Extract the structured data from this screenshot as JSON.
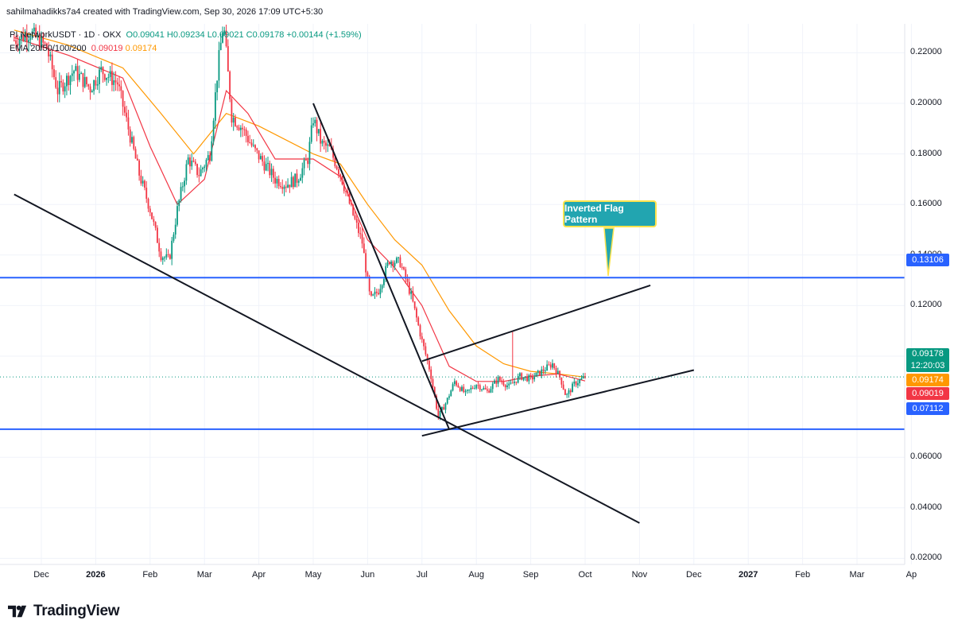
{
  "header": {
    "created_by": "sahilmahadikks7a4 created with TradingView.com, Sep 30, 2026 17:09 UTC+5:30",
    "symbol": "PI NetworkUSDT · 1D · OKX",
    "open": "O0.09041",
    "high": "H0.09234",
    "low": "L0.09021",
    "close": "C0.09178",
    "change": "+0.00144 (+1.59%)",
    "ma_label": "EMA 20/50/100/200",
    "ma20": "0.09019",
    "ma50": "0.09174"
  },
  "annotation": {
    "label": "Inverted Flag Pattern"
  },
  "price_tags": {
    "current": "0.09178",
    "countdown": "12:20:03",
    "ema50": "0.09174",
    "ema20": "0.09019",
    "resistance": "0.13106",
    "support": "0.07112"
  },
  "colors": {
    "up": "#089981",
    "down": "#f23645",
    "ema20": "#f23645",
    "ema50": "#ff9800",
    "horizontal_level": "#2962ff",
    "trendline": "#131722",
    "callout_bg": "#22a5b0",
    "callout_border": "#ffe34d"
  },
  "brand": {
    "name": "TradingView",
    "logo_icon": "tradingview-logo-icon"
  },
  "chart_data": {
    "type": "candlestick",
    "title": "",
    "xlabel": "",
    "ylabel": "",
    "ylim": [
      0.0,
      0.235
    ],
    "y_ticks": [
      "0.22000",
      "0.20000",
      "0.18000",
      "0.16000",
      "0.14000",
      "0.12000",
      "0.10000",
      "0.06000",
      "0.04000",
      "0.02000"
    ],
    "x_ticks": [
      {
        "label": "Dec",
        "t": 0.0
      },
      {
        "label": "2026",
        "t": 1.0,
        "bold": true
      },
      {
        "label": "Feb",
        "t": 2.0
      },
      {
        "label": "Mar",
        "t": 3.0
      },
      {
        "label": "Apr",
        "t": 4.0
      },
      {
        "label": "May",
        "t": 5.0
      },
      {
        "label": "Jun",
        "t": 6.0
      },
      {
        "label": "Jul",
        "t": 7.0
      },
      {
        "label": "Aug",
        "t": 8.0
      },
      {
        "label": "Sep",
        "t": 9.0
      },
      {
        "label": "Oct",
        "t": 10.0
      },
      {
        "label": "Nov",
        "t": 11.0
      },
      {
        "label": "Dec",
        "t": 12.0
      },
      {
        "label": "2027",
        "t": 13.0,
        "bold": true
      },
      {
        "label": "Feb",
        "t": 14.0
      },
      {
        "label": "Mar",
        "t": 15.0
      },
      {
        "label": "Ap",
        "t": 16.0
      }
    ],
    "price_path": [
      [
        -0.5,
        0.225
      ],
      [
        -0.2,
        0.228
      ],
      [
        0.1,
        0.222
      ],
      [
        0.3,
        0.205
      ],
      [
        0.6,
        0.213
      ],
      [
        0.9,
        0.206
      ],
      [
        1.1,
        0.213
      ],
      [
        1.4,
        0.208
      ],
      [
        1.6,
        0.19
      ],
      [
        1.8,
        0.172
      ],
      [
        2.0,
        0.158
      ],
      [
        2.2,
        0.14
      ],
      [
        2.35,
        0.138
      ],
      [
        2.5,
        0.158
      ],
      [
        2.7,
        0.178
      ],
      [
        2.9,
        0.172
      ],
      [
        3.1,
        0.18
      ],
      [
        3.25,
        0.215
      ],
      [
        3.35,
        0.232
      ],
      [
        3.5,
        0.195
      ],
      [
        3.7,
        0.19
      ],
      [
        3.9,
        0.182
      ],
      [
        4.1,
        0.176
      ],
      [
        4.3,
        0.17
      ],
      [
        4.5,
        0.168
      ],
      [
        4.7,
        0.17
      ],
      [
        4.9,
        0.178
      ],
      [
        5.0,
        0.194
      ],
      [
        5.15,
        0.184
      ],
      [
        5.3,
        0.182
      ],
      [
        5.5,
        0.172
      ],
      [
        5.7,
        0.158
      ],
      [
        5.9,
        0.145
      ],
      [
        6.05,
        0.122
      ],
      [
        6.2,
        0.126
      ],
      [
        6.4,
        0.138
      ],
      [
        6.6,
        0.137
      ],
      [
        6.8,
        0.124
      ],
      [
        7.0,
        0.106
      ],
      [
        7.15,
        0.094
      ],
      [
        7.3,
        0.076
      ],
      [
        7.45,
        0.082
      ],
      [
        7.6,
        0.09
      ],
      [
        7.8,
        0.085
      ],
      [
        8.0,
        0.089
      ],
      [
        8.2,
        0.086
      ],
      [
        8.4,
        0.091
      ],
      [
        8.6,
        0.088
      ],
      [
        8.8,
        0.092
      ],
      [
        9.0,
        0.091
      ],
      [
        9.2,
        0.094
      ],
      [
        9.4,
        0.097
      ],
      [
        9.55,
        0.091
      ],
      [
        9.65,
        0.084
      ],
      [
        9.8,
        0.089
      ],
      [
        10.0,
        0.09178
      ]
    ],
    "spikes": [
      {
        "t": 8.65,
        "high": 0.11
      }
    ],
    "ema20_path": [
      [
        -0.5,
        0.226
      ],
      [
        0.5,
        0.219
      ],
      [
        1.5,
        0.21
      ],
      [
        2.0,
        0.183
      ],
      [
        2.5,
        0.16
      ],
      [
        3.0,
        0.17
      ],
      [
        3.4,
        0.205
      ],
      [
        3.8,
        0.196
      ],
      [
        4.3,
        0.178
      ],
      [
        5.0,
        0.178
      ],
      [
        5.5,
        0.171
      ],
      [
        6.0,
        0.146
      ],
      [
        6.5,
        0.135
      ],
      [
        7.0,
        0.12
      ],
      [
        7.5,
        0.096
      ],
      [
        8.0,
        0.09
      ],
      [
        8.5,
        0.09
      ],
      [
        9.0,
        0.092
      ],
      [
        9.5,
        0.093
      ],
      [
        10.0,
        0.09019
      ]
    ],
    "ema50_path": [
      [
        -0.5,
        0.229
      ],
      [
        0.5,
        0.223
      ],
      [
        1.5,
        0.214
      ],
      [
        2.2,
        0.196
      ],
      [
        2.8,
        0.18
      ],
      [
        3.4,
        0.196
      ],
      [
        4.0,
        0.191
      ],
      [
        5.0,
        0.18
      ],
      [
        5.5,
        0.176
      ],
      [
        6.0,
        0.16
      ],
      [
        6.5,
        0.146
      ],
      [
        7.0,
        0.136
      ],
      [
        7.5,
        0.118
      ],
      [
        8.0,
        0.104
      ],
      [
        8.5,
        0.097
      ],
      [
        9.0,
        0.094
      ],
      [
        9.5,
        0.093
      ],
      [
        10.0,
        0.09174
      ]
    ],
    "levels": [
      {
        "name": "resistance",
        "value": 0.13106
      },
      {
        "name": "support",
        "value": 0.07112
      }
    ],
    "current_price": 0.09178,
    "trendlines": [
      {
        "name": "long-term-support",
        "from": [
          -0.5,
          0.164
        ],
        "to": [
          11.0,
          0.034
        ]
      },
      {
        "name": "flagpole",
        "from": [
          5.0,
          0.2
        ],
        "to": [
          7.5,
          0.0711
        ]
      },
      {
        "name": "channel-upper",
        "from": [
          7.0,
          0.098
        ],
        "to": [
          11.2,
          0.128
        ]
      },
      {
        "name": "channel-lower",
        "from": [
          7.5,
          0.0711
        ],
        "to": [
          12.0,
          0.0945
        ]
      },
      {
        "name": "flag-base",
        "from": [
          7.0,
          0.0685
        ],
        "to": [
          7.5,
          0.0711
        ]
      }
    ]
  }
}
